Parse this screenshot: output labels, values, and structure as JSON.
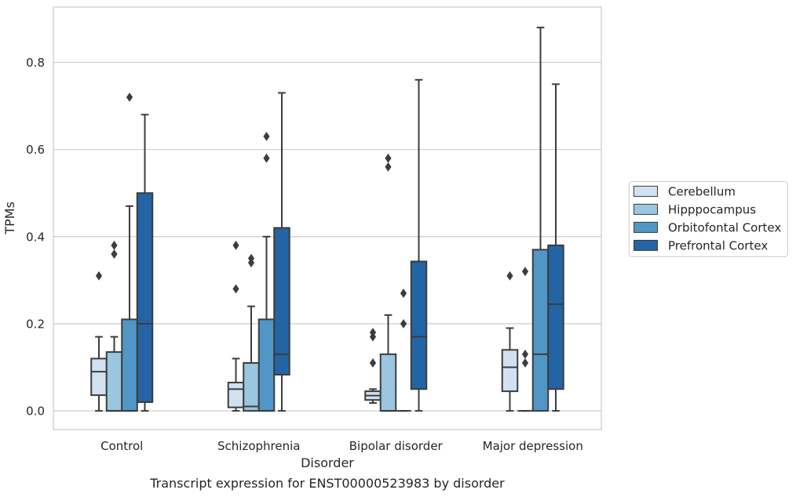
{
  "chart_data": {
    "type": "boxplot",
    "title": "",
    "caption": "Transcript expression for ENST00000523983 by disorder",
    "xlabel": "Disorder",
    "ylabel": "TPMs",
    "ylim": [
      -0.043,
      0.927
    ],
    "yticks": [
      0.0,
      0.2,
      0.4,
      0.6,
      0.8
    ],
    "ytick_labels": [
      "0.0",
      "0.2",
      "0.4",
      "0.6",
      "0.8"
    ],
    "grid": "horizontal",
    "legend_position": "right",
    "categories": [
      "Control",
      "Schizophrenia",
      "Bipolar disorder",
      "Major depression"
    ],
    "series": [
      {
        "name": "Cerebellum",
        "color": "#d1e1f1",
        "boxes": [
          {
            "whisker_low": 0.0,
            "q1": 0.036,
            "median": 0.09,
            "q3": 0.12,
            "whisker_high": 0.17,
            "outliers": [
              0.31
            ]
          },
          {
            "whisker_low": 0.0,
            "q1": 0.008,
            "median": 0.05,
            "q3": 0.065,
            "whisker_high": 0.12,
            "outliers": [
              0.28,
              0.38
            ]
          },
          {
            "whisker_low": 0.018,
            "q1": 0.025,
            "median": 0.035,
            "q3": 0.045,
            "whisker_high": 0.05,
            "outliers": [
              0.11,
              0.17,
              0.18
            ]
          },
          {
            "whisker_low": 0.0,
            "q1": 0.045,
            "median": 0.1,
            "q3": 0.14,
            "whisker_high": 0.19,
            "outliers": [
              0.31
            ]
          }
        ]
      },
      {
        "name": "Hipppocampus",
        "color": "#9ac6e0",
        "boxes": [
          {
            "whisker_low": 0.0,
            "q1": 0.0,
            "median": 0.0,
            "q3": 0.135,
            "whisker_high": 0.17,
            "outliers": [
              0.36,
              0.38
            ]
          },
          {
            "whisker_low": 0.0,
            "q1": 0.0,
            "median": 0.01,
            "q3": 0.11,
            "whisker_high": 0.24,
            "outliers": [
              0.34,
              0.35
            ]
          },
          {
            "whisker_low": 0.0,
            "q1": 0.0,
            "median": 0.0,
            "q3": 0.13,
            "whisker_high": 0.22,
            "outliers": [
              0.56,
              0.58
            ]
          },
          {
            "whisker_low": 0.0,
            "q1": 0.0,
            "median": 0.0,
            "q3": 0.0,
            "whisker_high": 0.0,
            "outliers": [
              0.11,
              0.13,
              0.32
            ]
          }
        ]
      },
      {
        "name": "Orbitofontal Cortex",
        "color": "#5097c7",
        "boxes": [
          {
            "whisker_low": 0.0,
            "q1": 0.0,
            "median": 0.0,
            "q3": 0.21,
            "whisker_high": 0.47,
            "outliers": [
              0.72
            ]
          },
          {
            "whisker_low": 0.0,
            "q1": 0.0,
            "median": 0.0,
            "q3": 0.21,
            "whisker_high": 0.4,
            "outliers": [
              0.58,
              0.63
            ]
          },
          {
            "whisker_low": 0.0,
            "q1": 0.0,
            "median": 0.0,
            "q3": 0.0,
            "whisker_high": 0.0,
            "outliers": [
              0.2,
              0.27
            ]
          },
          {
            "whisker_low": 0.0,
            "q1": 0.0,
            "median": 0.13,
            "q3": 0.37,
            "whisker_high": 0.88,
            "outliers": []
          }
        ]
      },
      {
        "name": "Prefrontal Cortex",
        "color": "#2364a5",
        "boxes": [
          {
            "whisker_low": 0.0,
            "q1": 0.02,
            "median": 0.2,
            "q3": 0.5,
            "whisker_high": 0.68,
            "outliers": []
          },
          {
            "whisker_low": 0.0,
            "q1": 0.083,
            "median": 0.13,
            "q3": 0.42,
            "whisker_high": 0.73,
            "outliers": []
          },
          {
            "whisker_low": 0.0,
            "q1": 0.05,
            "median": 0.17,
            "q3": 0.343,
            "whisker_high": 0.76,
            "outliers": []
          },
          {
            "whisker_low": 0.0,
            "q1": 0.05,
            "median": 0.245,
            "q3": 0.38,
            "whisker_high": 0.75,
            "outliers": []
          }
        ]
      }
    ]
  }
}
